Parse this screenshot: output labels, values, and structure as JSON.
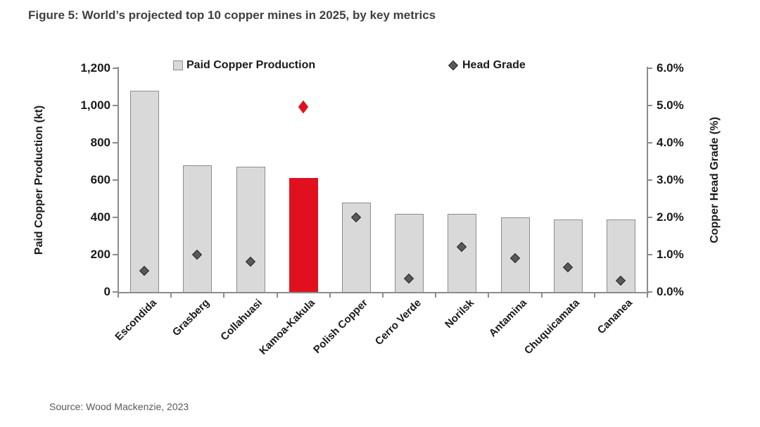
{
  "figure": {
    "title": "Figure 5: World’s projected top 10 copper mines in 2025, by key metrics",
    "source": "Source: Wood Mackenzie, 2023"
  },
  "chart_data": {
    "type": "bar",
    "title": "World’s projected top 10 copper mines in 2025, by key metrics",
    "legend_position": "top",
    "grid": false,
    "categories": [
      "Escondida",
      "Grasberg",
      "Collahuasi",
      "Kamoa-Kakula",
      "Polish Copper",
      "Cerro Verde",
      "Norilsk",
      "Antamina",
      "Chuquicamata",
      "Cananea"
    ],
    "series": [
      {
        "name": "Paid Copper Production",
        "type": "bar",
        "axis": "left",
        "values": [
          1080,
          680,
          670,
          610,
          480,
          420,
          420,
          400,
          390,
          390
        ],
        "bar_fill": "#d9d9d9",
        "bar_border": "#8c8c8c",
        "highlight_index": 3,
        "highlight_color": "#e0101e"
      },
      {
        "name": "Head Grade",
        "type": "scatter",
        "marker": "diamond",
        "axis": "right",
        "values": [
          0.55,
          1.0,
          0.8,
          4.95,
          2.0,
          0.35,
          1.2,
          0.9,
          0.65,
          0.3
        ],
        "marker_fill": "#595959",
        "marker_border": "#262626",
        "highlight_index": 3,
        "highlight_color": "#e0101e"
      }
    ],
    "left_axis": {
      "label": "Paid Copper Production (kt)",
      "min": 0,
      "max": 1200,
      "tick_values": [
        1200,
        1000,
        800,
        600,
        400,
        200,
        0
      ],
      "tick_labels": [
        "1,200",
        "1,000",
        "800",
        "600",
        "400",
        "200",
        "0"
      ]
    },
    "right_axis": {
      "label": "Copper Head Grade (%)",
      "min": 0,
      "max": 6,
      "tick_values": [
        6,
        5,
        4,
        3,
        2,
        1,
        0
      ],
      "tick_labels": [
        "6.0%",
        "5.0%",
        "4.0%",
        "3.0%",
        "2.0%",
        "1.0%",
        "0.0%"
      ]
    },
    "highlighted_category": "Kamoa-Kakula"
  }
}
